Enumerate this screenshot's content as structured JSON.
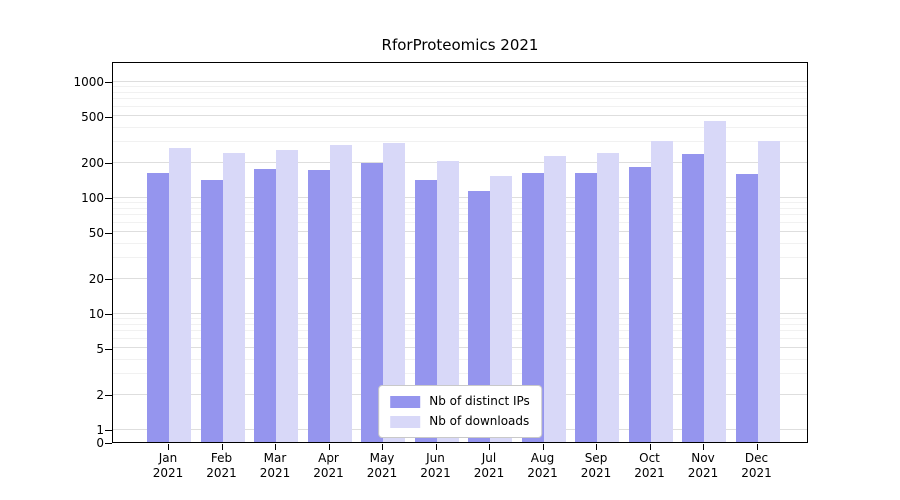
{
  "chart_data": {
    "type": "bar",
    "title": "RforProteomics 2021",
    "year": "2021",
    "categories": [
      "Jan",
      "Feb",
      "Mar",
      "Apr",
      "May",
      "Jun",
      "Jul",
      "Aug",
      "Sep",
      "Oct",
      "Nov",
      "Dec"
    ],
    "series": [
      {
        "name": "Nb of distinct IPs",
        "color": "#9595ee",
        "values": [
          160,
          140,
          175,
          172,
          195,
          140,
          112,
          160,
          162,
          183,
          235,
          158
        ]
      },
      {
        "name": "Nb of downloads",
        "color": "#d8d8f8",
        "values": [
          265,
          238,
          252,
          282,
          290,
          205,
          152,
          228,
          238,
          305,
          450,
          305
        ]
      }
    ],
    "y_ticks": [
      0,
      1,
      2,
      5,
      10,
      20,
      50,
      100,
      200,
      500,
      1000
    ],
    "y_scale": "log",
    "ylim": [
      0,
      1500
    ],
    "xlabel": "",
    "ylabel": "",
    "grid": "horizontal",
    "legend_position": "bottom-center-inside"
  }
}
